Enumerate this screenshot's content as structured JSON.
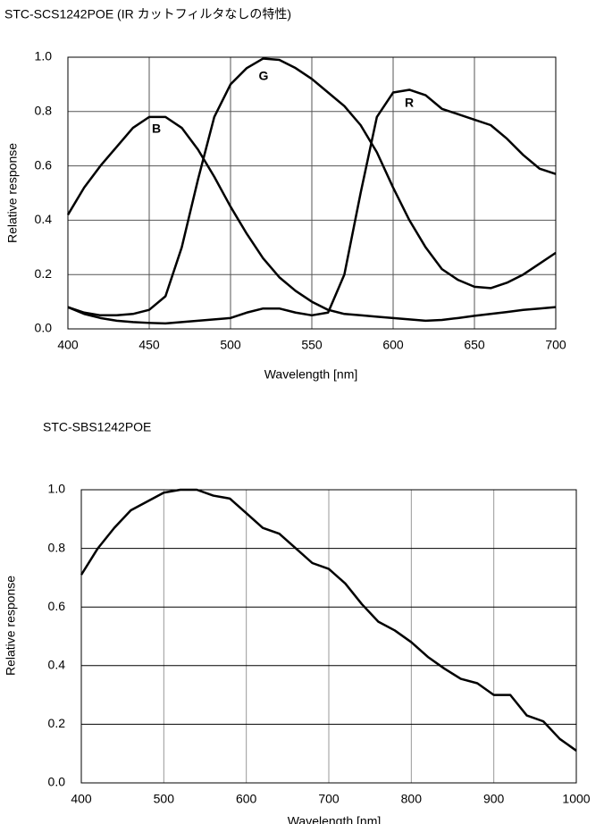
{
  "chart_data": [
    {
      "type": "line",
      "title": "STC-SCS1242POE (IR カットフィルタなしの特性)",
      "x_label": "Wavelength [nm]",
      "y_label": "Relative response",
      "x": [
        400,
        410,
        420,
        430,
        440,
        450,
        460,
        470,
        480,
        490,
        500,
        510,
        520,
        530,
        540,
        550,
        560,
        570,
        580,
        590,
        600,
        610,
        620,
        630,
        640,
        650,
        660,
        670,
        680,
        690,
        700
      ],
      "series": [
        {
          "name": "B",
          "color": "#000000",
          "values": [
            0.42,
            0.52,
            0.6,
            0.67,
            0.74,
            0.78,
            0.78,
            0.74,
            0.66,
            0.56,
            0.45,
            0.35,
            0.26,
            0.19,
            0.14,
            0.1,
            0.07,
            0.055,
            0.05,
            0.045,
            0.04,
            0.035,
            0.03,
            0.033,
            0.04,
            0.048,
            0.055,
            0.062,
            0.07,
            0.075,
            0.08
          ]
        },
        {
          "name": "G",
          "color": "#000000",
          "values": [
            0.08,
            0.06,
            0.05,
            0.05,
            0.055,
            0.07,
            0.12,
            0.3,
            0.55,
            0.78,
            0.9,
            0.96,
            0.995,
            0.99,
            0.96,
            0.92,
            0.87,
            0.82,
            0.75,
            0.65,
            0.52,
            0.4,
            0.3,
            0.22,
            0.18,
            0.155,
            0.15,
            0.17,
            0.2,
            0.24,
            0.28
          ]
        },
        {
          "name": "R",
          "color": "#000000",
          "values": [
            0.08,
            0.055,
            0.04,
            0.03,
            0.025,
            0.022,
            0.02,
            0.025,
            0.03,
            0.035,
            0.04,
            0.06,
            0.075,
            0.075,
            0.06,
            0.05,
            0.06,
            0.2,
            0.5,
            0.78,
            0.87,
            0.88,
            0.86,
            0.81,
            0.79,
            0.77,
            0.75,
            0.7,
            0.64,
            0.59,
            0.57
          ]
        }
      ],
      "xlim": [
        400,
        700
      ],
      "xticks": [
        400,
        450,
        500,
        550,
        600,
        650,
        700
      ],
      "ylim": [
        0,
        1
      ],
      "yticks": [
        {
          "value": 0,
          "label": "0.0"
        },
        0.2,
        0.4,
        0.6,
        0.8,
        {
          "value": 1,
          "label": "1.0"
        }
      ],
      "grid": true
    },
    {
      "type": "line",
      "title": "STC-SBS1242POE",
      "x_label": "Wavelength [nm]",
      "y_label": "Relative response",
      "x": [
        400,
        420,
        440,
        460,
        480,
        500,
        520,
        540,
        560,
        580,
        600,
        620,
        640,
        660,
        680,
        700,
        720,
        740,
        760,
        780,
        800,
        820,
        840,
        860,
        880,
        900,
        920,
        940,
        960,
        980,
        1000
      ],
      "series": [
        {
          "name": null,
          "color": "#000000",
          "values": [
            0.71,
            0.8,
            0.87,
            0.93,
            0.96,
            0.99,
            1.0,
            1.0,
            0.98,
            0.97,
            0.92,
            0.87,
            0.85,
            0.8,
            0.75,
            0.73,
            0.68,
            0.61,
            0.55,
            0.52,
            0.48,
            0.43,
            0.39,
            0.355,
            0.34,
            0.3,
            0.3,
            0.23,
            0.21,
            0.15,
            0.11
          ]
        }
      ],
      "xlim": [
        400,
        1000
      ],
      "xticks": [
        400,
        500,
        600,
        700,
        800,
        900,
        1000
      ],
      "ylim": [
        0,
        1
      ],
      "yticks": [
        {
          "value": 0,
          "label": "0.0"
        },
        0.2,
        0.4,
        0.6,
        0.8,
        {
          "value": 1,
          "label": "1.0"
        }
      ],
      "grid": true
    }
  ]
}
